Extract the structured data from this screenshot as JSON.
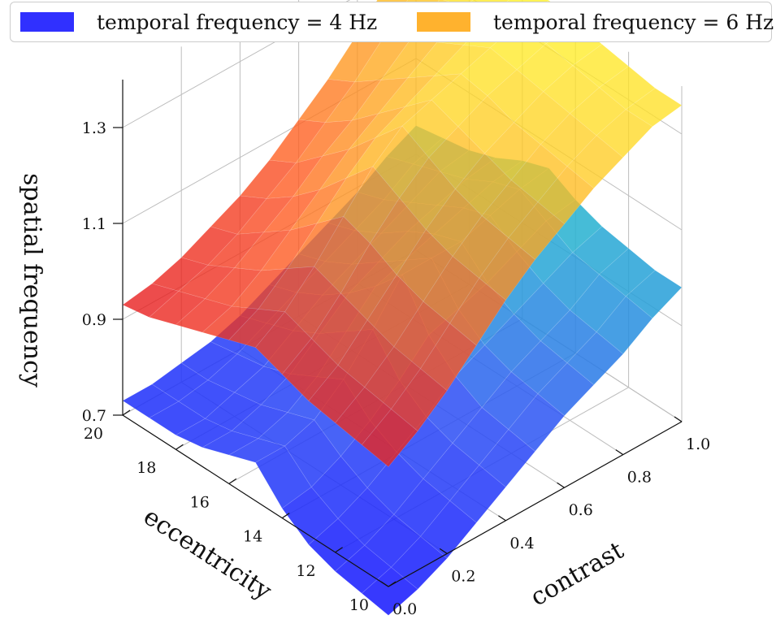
{
  "chart_data": {
    "type": "surface3d",
    "title": "",
    "legend_position": "top",
    "xlabel": "contrast",
    "ylabel": "eccentricity",
    "zlabel": "spatial frequency",
    "xlim": [
      0.0,
      1.0
    ],
    "ylim": [
      10,
      20
    ],
    "zlim": [
      0.7,
      1.4
    ],
    "xticks": [
      0.0,
      0.2,
      0.4,
      0.6,
      0.8,
      1.0
    ],
    "yticks": [
      10,
      12,
      14,
      16,
      18,
      20
    ],
    "zticks": [
      0.7,
      0.9,
      1.1,
      1.3
    ],
    "xtick_labels": [
      "0.0",
      "0.2",
      "0.4",
      "0.6",
      "0.8",
      "1.0"
    ],
    "ytick_labels": [
      "10",
      "12",
      "14",
      "16",
      "18",
      "20"
    ],
    "ztick_labels": [
      "0.7",
      "0.9",
      "1.1",
      "1.3"
    ],
    "grid": true,
    "series": [
      {
        "name": "temporal frequency = 4 Hz",
        "legend_color": "#3030ff",
        "colormap": "jet-like (blue to cyan)",
        "x": [
          0.0,
          0.1,
          0.2,
          0.3,
          0.4,
          0.5,
          0.6,
          0.7,
          0.8,
          0.9,
          1.0
        ],
        "y": [
          10,
          11,
          12,
          13,
          14,
          15,
          16,
          17,
          18,
          19,
          20
        ],
        "z": [
          [
            0.64,
            0.66,
            0.69,
            0.73,
            0.77,
            0.81,
            0.85,
            0.88,
            0.91,
            0.95,
            0.98
          ],
          [
            0.65,
            0.67,
            0.7,
            0.74,
            0.78,
            0.82,
            0.86,
            0.89,
            0.92,
            0.96,
            0.98
          ],
          [
            0.66,
            0.68,
            0.71,
            0.75,
            0.79,
            0.83,
            0.87,
            0.9,
            0.93,
            0.97,
            0.99
          ],
          [
            0.68,
            0.7,
            0.73,
            0.77,
            0.81,
            0.86,
            0.89,
            0.92,
            0.95,
            0.98,
            1.0
          ],
          [
            0.72,
            0.73,
            0.76,
            0.8,
            0.85,
            0.91,
            0.93,
            0.95,
            0.98,
            1.01,
            1.02
          ],
          [
            0.78,
            0.78,
            0.8,
            0.85,
            0.92,
            1.0,
            1.0,
            1.0,
            1.02,
            1.04,
            1.05
          ],
          [
            0.76,
            0.76,
            0.78,
            0.82,
            0.88,
            0.94,
            0.96,
            0.98,
            1.0,
            1.02,
            1.03
          ],
          [
            0.74,
            0.74,
            0.76,
            0.79,
            0.84,
            0.89,
            0.92,
            0.95,
            0.97,
            0.99,
            1.0
          ],
          [
            0.73,
            0.73,
            0.75,
            0.77,
            0.81,
            0.85,
            0.88,
            0.91,
            0.94,
            0.97,
            0.98
          ],
          [
            0.73,
            0.73,
            0.74,
            0.76,
            0.79,
            0.82,
            0.85,
            0.88,
            0.91,
            0.95,
            0.97
          ],
          [
            0.73,
            0.73,
            0.74,
            0.75,
            0.77,
            0.8,
            0.83,
            0.86,
            0.89,
            0.93,
            0.96
          ]
        ]
      },
      {
        "name": "temporal frequency = 6 Hz",
        "legend_color": "#ffb22e",
        "colormap": "autumn-like (red to yellow)",
        "x": [
          0.0,
          0.1,
          0.2,
          0.3,
          0.4,
          0.5,
          0.6,
          0.7,
          0.8,
          0.9,
          1.0
        ],
        "y": [
          10,
          11,
          12,
          13,
          14,
          15,
          16,
          17,
          18,
          19,
          20
        ],
        "z": [
          [
            0.95,
            0.99,
            1.04,
            1.1,
            1.16,
            1.21,
            1.25,
            1.29,
            1.32,
            1.35,
            1.36
          ],
          [
            0.96,
            1.0,
            1.05,
            1.11,
            1.17,
            1.22,
            1.26,
            1.3,
            1.33,
            1.35,
            1.36
          ],
          [
            0.97,
            1.01,
            1.06,
            1.12,
            1.18,
            1.23,
            1.27,
            1.31,
            1.34,
            1.36,
            1.37
          ],
          [
            0.98,
            1.02,
            1.08,
            1.14,
            1.2,
            1.25,
            1.29,
            1.32,
            1.35,
            1.37,
            1.38
          ],
          [
            1.0,
            1.04,
            1.1,
            1.17,
            1.23,
            1.28,
            1.31,
            1.34,
            1.36,
            1.38,
            1.39
          ],
          [
            1.02,
            1.06,
            1.12,
            1.19,
            1.26,
            1.31,
            1.33,
            1.35,
            1.37,
            1.39,
            1.4
          ],
          [
            1.0,
            1.03,
            1.08,
            1.14,
            1.2,
            1.25,
            1.28,
            1.31,
            1.34,
            1.37,
            1.39
          ],
          [
            0.98,
            1.0,
            1.04,
            1.09,
            1.14,
            1.19,
            1.23,
            1.27,
            1.31,
            1.35,
            1.38
          ],
          [
            0.96,
            0.98,
            1.01,
            1.05,
            1.09,
            1.14,
            1.18,
            1.23,
            1.28,
            1.33,
            1.37
          ],
          [
            0.94,
            0.96,
            0.98,
            1.01,
            1.05,
            1.09,
            1.14,
            1.19,
            1.25,
            1.31,
            1.36
          ],
          [
            0.93,
            0.94,
            0.96,
            0.99,
            1.02,
            1.06,
            1.11,
            1.16,
            1.22,
            1.29,
            1.35
          ]
        ]
      }
    ]
  }
}
